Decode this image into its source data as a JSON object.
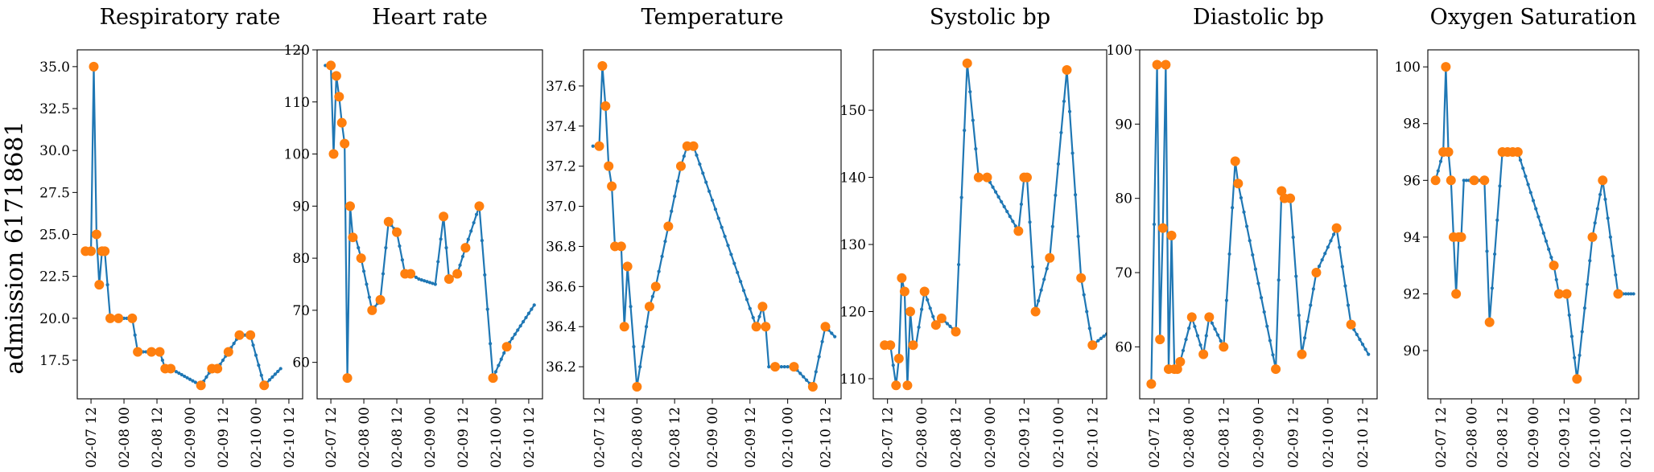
{
  "figure": {
    "ylabel": "admission 61718681"
  },
  "colors": {
    "line": "#1f77b4",
    "observed": "#ff7f0e",
    "axis": "#000000"
  },
  "chart_data": [
    {
      "type": "line",
      "title": "Respiratory rate",
      "xlabel": "",
      "ylabel": "",
      "xlim": [
        "2055-02-07 07:00",
        "2055-02-10 17:00"
      ],
      "ylim": [
        15.2,
        36.0
      ],
      "xticks": [
        "02-07 12",
        "02-08 00",
        "02-08 12",
        "02-09 00",
        "02-09 12",
        "02-10 00",
        "02-10 12"
      ],
      "yticks": [
        "17.5",
        "20.0",
        "22.5",
        "25.0",
        "27.5",
        "30.0",
        "32.5",
        "35.0"
      ],
      "series": [
        {
          "role": "interpolated",
          "x": [
            "2055-02-07 10:00",
            "2055-02-07 12:00",
            "2055-02-07 13:00",
            "2055-02-07 14:00",
            "2055-02-07 15:00",
            "2055-02-07 16:00",
            "2055-02-07 17:00",
            "2055-02-07 19:00",
            "2055-02-07 21:00",
            "2055-02-08 00:00",
            "2055-02-08 03:00",
            "2055-02-08 05:00",
            "2055-02-08 10:00",
            "2055-02-08 13:00",
            "2055-02-08 15:00",
            "2055-02-08 17:00",
            "2055-02-09 04:00",
            "2055-02-09 08:00",
            "2055-02-09 10:00",
            "2055-02-09 14:00",
            "2055-02-09 18:00",
            "2055-02-09 22:00",
            "2055-02-10 03:00",
            "2055-02-10 09:00"
          ],
          "y": [
            24,
            24,
            35,
            25,
            22,
            24,
            24,
            20,
            20,
            20,
            20,
            18,
            18,
            18,
            17,
            17,
            16,
            17,
            17,
            18,
            19,
            19,
            16,
            17
          ]
        },
        {
          "role": "observed",
          "x": [
            "2055-02-07 10:00",
            "2055-02-07 12:00",
            "2055-02-07 13:00",
            "2055-02-07 14:00",
            "2055-02-07 15:00",
            "2055-02-07 16:00",
            "2055-02-07 17:00",
            "2055-02-07 19:00",
            "2055-02-07 22:00",
            "2055-02-08 03:00",
            "2055-02-08 05:00",
            "2055-02-08 10:00",
            "2055-02-08 13:00",
            "2055-02-08 15:00",
            "2055-02-08 17:00",
            "2055-02-09 04:00",
            "2055-02-09 08:00",
            "2055-02-09 10:00",
            "2055-02-09 14:00",
            "2055-02-09 18:00",
            "2055-02-09 22:00",
            "2055-02-10 03:00"
          ],
          "y": [
            24,
            24,
            35,
            25,
            22,
            24,
            24,
            20,
            20,
            20,
            18,
            18,
            18,
            17,
            17,
            16,
            17,
            17,
            18,
            19,
            19,
            16
          ]
        }
      ]
    },
    {
      "type": "line",
      "title": "Heart rate",
      "xlabel": "",
      "ylabel": "",
      "xlim": [
        "2055-02-07 07:00",
        "2055-02-10 17:00"
      ],
      "ylim": [
        53,
        120
      ],
      "xticks": [
        "02-07 12",
        "02-08 00",
        "02-08 12",
        "02-09 00",
        "02-09 12",
        "02-10 00",
        "02-10 12"
      ],
      "yticks": [
        "60",
        "70",
        "80",
        "90",
        "100",
        "110",
        "120"
      ],
      "series": [
        {
          "role": "interpolated",
          "x": [
            "2055-02-07 10:00",
            "2055-02-07 12:00",
            "2055-02-07 13:00",
            "2055-02-07 14:00",
            "2055-02-07 15:00",
            "2055-02-07 16:00",
            "2055-02-07 17:00",
            "2055-02-07 18:00",
            "2055-02-07 19:00",
            "2055-02-07 20:00",
            "2055-02-07 21:00",
            "2055-02-07 23:00",
            "2055-02-08 03:00",
            "2055-02-08 06:00",
            "2055-02-08 09:00",
            "2055-02-08 12:00",
            "2055-02-08 15:00",
            "2055-02-08 16:00",
            "2055-02-08 17:00",
            "2055-02-08 20:00",
            "2055-02-09 02:00",
            "2055-02-09 05:00",
            "2055-02-09 07:00",
            "2055-02-09 10:00",
            "2055-02-09 13:00",
            "2055-02-09 18:00",
            "2055-02-09 23:00",
            "2055-02-10 04:00",
            "2055-02-10 14:00"
          ],
          "y": [
            117,
            117,
            100,
            115,
            111,
            106,
            102,
            57,
            90,
            84,
            84,
            80,
            70,
            72,
            87,
            85,
            77,
            77,
            77,
            76,
            75,
            88,
            76,
            77,
            82,
            90,
            57,
            63,
            71
          ]
        },
        {
          "role": "observed",
          "x": [
            "2055-02-07 12:00",
            "2055-02-07 13:00",
            "2055-02-07 14:00",
            "2055-02-07 15:00",
            "2055-02-07 16:00",
            "2055-02-07 17:00",
            "2055-02-07 18:00",
            "2055-02-07 19:00",
            "2055-02-07 20:00",
            "2055-02-07 23:00",
            "2055-02-08 03:00",
            "2055-02-08 06:00",
            "2055-02-08 09:00",
            "2055-02-08 12:00",
            "2055-02-08 15:00",
            "2055-02-08 17:00",
            "2055-02-09 05:00",
            "2055-02-09 07:00",
            "2055-02-09 10:00",
            "2055-02-09 13:00",
            "2055-02-09 18:00",
            "2055-02-09 23:00",
            "2055-02-10 04:00"
          ],
          "y": [
            117,
            100,
            115,
            111,
            106,
            102,
            57,
            90,
            84,
            80,
            70,
            72,
            87,
            85,
            77,
            77,
            88,
            76,
            77,
            82,
            90,
            57,
            63
          ]
        }
      ]
    },
    {
      "type": "line",
      "title": "Temperature",
      "xlabel": "",
      "ylabel": "",
      "xlim": [
        "2055-02-07 07:00",
        "2055-02-10 17:00"
      ],
      "ylim": [
        36.04,
        37.78
      ],
      "xticks": [
        "02-07 12",
        "02-08 00",
        "02-08 12",
        "02-09 00",
        "02-09 12",
        "02-10 00",
        "02-10 12"
      ],
      "yticks": [
        "36.2",
        "36.4",
        "36.6",
        "36.8",
        "37.0",
        "37.2",
        "37.4",
        "37.6"
      ],
      "series": [
        {
          "role": "interpolated",
          "x": [
            "2055-02-07 10:00",
            "2055-02-07 12:00",
            "2055-02-07 13:00",
            "2055-02-07 14:00",
            "2055-02-07 15:00",
            "2055-02-07 16:00",
            "2055-02-07 17:00",
            "2055-02-07 19:00",
            "2055-02-07 20:00",
            "2055-02-07 21:00",
            "2055-02-08 00:00",
            "2055-02-08 04:00",
            "2055-02-08 06:00",
            "2055-02-08 10:00",
            "2055-02-08 14:00",
            "2055-02-08 16:00",
            "2055-02-08 18:00",
            "2055-02-09 14:00",
            "2055-02-09 16:00",
            "2055-02-09 17:00",
            "2055-02-09 18:00",
            "2055-02-09 20:00",
            "2055-02-10 02:00",
            "2055-02-10 08:00",
            "2055-02-10 12:00",
            "2055-02-10 15:00"
          ],
          "y": [
            37.3,
            37.3,
            37.7,
            37.5,
            37.2,
            37.1,
            36.8,
            36.8,
            36.4,
            36.7,
            36.1,
            36.5,
            36.6,
            36.9,
            37.2,
            37.3,
            37.3,
            36.4,
            36.5,
            36.4,
            36.2,
            36.2,
            36.2,
            36.1,
            36.4,
            36.35
          ]
        },
        {
          "role": "observed",
          "x": [
            "2055-02-07 12:00",
            "2055-02-07 13:00",
            "2055-02-07 14:00",
            "2055-02-07 15:00",
            "2055-02-07 16:00",
            "2055-02-07 17:00",
            "2055-02-07 19:00",
            "2055-02-07 20:00",
            "2055-02-07 21:00",
            "2055-02-08 00:00",
            "2055-02-08 04:00",
            "2055-02-08 06:00",
            "2055-02-08 10:00",
            "2055-02-08 14:00",
            "2055-02-08 16:00",
            "2055-02-08 18:00",
            "2055-02-09 14:00",
            "2055-02-09 16:00",
            "2055-02-09 17:00",
            "2055-02-09 20:00",
            "2055-02-10 02:00",
            "2055-02-10 08:00",
            "2055-02-10 12:00"
          ],
          "y": [
            37.3,
            37.7,
            37.5,
            37.2,
            37.1,
            36.8,
            36.8,
            36.4,
            36.7,
            36.1,
            36.5,
            36.6,
            36.9,
            37.2,
            37.3,
            37.3,
            36.4,
            36.5,
            36.4,
            36.2,
            36.2,
            36.1,
            36.4
          ]
        }
      ]
    },
    {
      "type": "line",
      "title": "Systolic bp",
      "xlabel": "",
      "ylabel": "",
      "xlim": [
        "2055-02-07 07:00",
        "2055-02-10 17:00"
      ],
      "ylim": [
        107,
        159
      ],
      "xticks": [
        "02-07 12",
        "02-08 00",
        "02-08 12",
        "02-09 00",
        "02-09 12",
        "02-10 00",
        "02-10 12"
      ],
      "yticks": [
        "110",
        "120",
        "130",
        "140",
        "150"
      ],
      "series": [
        {
          "role": "interpolated",
          "x": [
            "2055-02-07 11:00",
            "2055-02-07 13:00",
            "2055-02-07 15:00",
            "2055-02-07 16:00",
            "2055-02-07 17:00",
            "2055-02-07 18:00",
            "2055-02-07 19:00",
            "2055-02-07 20:00",
            "2055-02-07 21:00",
            "2055-02-07 22:00",
            "2055-02-08 01:00",
            "2055-02-08 05:00",
            "2055-02-08 07:00",
            "2055-02-08 12:00",
            "2055-02-08 16:00",
            "2055-02-08 20:00",
            "2055-02-08 23:00",
            "2055-02-09 10:00",
            "2055-02-09 12:00",
            "2055-02-09 13:00",
            "2055-02-09 16:00",
            "2055-02-09 21:00",
            "2055-02-10 03:00",
            "2055-02-10 08:00",
            "2055-02-10 12:00",
            "2055-02-10 18:00"
          ],
          "y": [
            115,
            115,
            109,
            113,
            125,
            123,
            109,
            120,
            115,
            115,
            123,
            118,
            119,
            117,
            157,
            140,
            140,
            132,
            140,
            140,
            120,
            128,
            156,
            125,
            115,
            117
          ]
        },
        {
          "role": "observed",
          "x": [
            "2055-02-07 11:00",
            "2055-02-07 13:00",
            "2055-02-07 15:00",
            "2055-02-07 16:00",
            "2055-02-07 17:00",
            "2055-02-07 18:00",
            "2055-02-07 19:00",
            "2055-02-07 20:00",
            "2055-02-07 21:00",
            "2055-02-08 01:00",
            "2055-02-08 05:00",
            "2055-02-08 07:00",
            "2055-02-08 12:00",
            "2055-02-08 16:00",
            "2055-02-08 20:00",
            "2055-02-08 23:00",
            "2055-02-09 10:00",
            "2055-02-09 12:00",
            "2055-02-09 13:00",
            "2055-02-09 16:00",
            "2055-02-09 21:00",
            "2055-02-10 03:00",
            "2055-02-10 08:00",
            "2055-02-10 12:00"
          ],
          "y": [
            115,
            115,
            109,
            113,
            125,
            123,
            109,
            120,
            115,
            123,
            118,
            119,
            117,
            157,
            140,
            140,
            132,
            140,
            140,
            120,
            128,
            156,
            125,
            115
          ]
        }
      ]
    },
    {
      "type": "line",
      "title": "Diastolic bp",
      "xlabel": "",
      "ylabel": "",
      "xlim": [
        "2055-02-07 07:00",
        "2055-02-10 17:00"
      ],
      "ylim": [
        53,
        100
      ],
      "xticks": [
        "02-07 12",
        "02-08 00",
        "02-08 12",
        "02-09 00",
        "02-09 12",
        "02-10 00",
        "02-10 12"
      ],
      "yticks": [
        "60",
        "70",
        "80",
        "90",
        "100"
      ],
      "series": [
        {
          "role": "interpolated",
          "x": [
            "2055-02-07 11:00",
            "2055-02-07 13:00",
            "2055-02-07 14:00",
            "2055-02-07 15:00",
            "2055-02-07 16:00",
            "2055-02-07 17:00",
            "2055-02-07 18:00",
            "2055-02-07 19:00",
            "2055-02-07 20:00",
            "2055-02-07 21:00",
            "2055-02-08 01:00",
            "2055-02-08 05:00",
            "2055-02-08 07:00",
            "2055-02-08 12:00",
            "2055-02-08 16:00",
            "2055-02-08 17:00",
            "2055-02-09 06:00",
            "2055-02-09 08:00",
            "2055-02-09 09:00",
            "2055-02-09 11:00",
            "2055-02-09 15:00",
            "2055-02-09 20:00",
            "2055-02-10 03:00",
            "2055-02-10 08:00",
            "2055-02-10 14:00"
          ],
          "y": [
            55,
            98,
            61,
            76,
            98,
            57,
            75,
            57,
            57,
            58,
            64,
            59,
            64,
            60,
            85,
            82,
            57,
            81,
            80,
            80,
            59,
            70,
            76,
            63,
            59
          ]
        },
        {
          "role": "observed",
          "x": [
            "2055-02-07 11:00",
            "2055-02-07 13:00",
            "2055-02-07 14:00",
            "2055-02-07 15:00",
            "2055-02-07 16:00",
            "2055-02-07 17:00",
            "2055-02-07 18:00",
            "2055-02-07 19:00",
            "2055-02-07 20:00",
            "2055-02-07 21:00",
            "2055-02-08 01:00",
            "2055-02-08 05:00",
            "2055-02-08 07:00",
            "2055-02-08 12:00",
            "2055-02-08 16:00",
            "2055-02-08 17:00",
            "2055-02-09 06:00",
            "2055-02-09 08:00",
            "2055-02-09 09:00",
            "2055-02-09 11:00",
            "2055-02-09 15:00",
            "2055-02-09 20:00",
            "2055-02-10 03:00",
            "2055-02-10 08:00"
          ],
          "y": [
            55,
            98,
            61,
            76,
            98,
            57,
            75,
            57,
            57,
            58,
            64,
            59,
            64,
            60,
            85,
            82,
            57,
            81,
            80,
            80,
            59,
            70,
            76,
            63
          ]
        }
      ]
    },
    {
      "type": "line",
      "title": "Oxygen Saturation",
      "xlabel": "",
      "ylabel": "",
      "xlim": [
        "2055-02-07 07:00",
        "2055-02-10 17:00"
      ],
      "ylim": [
        88.3,
        100.6
      ],
      "xticks": [
        "02-07 12",
        "02-08 00",
        "02-08 12",
        "02-09 00",
        "02-09 12",
        "02-10 00",
        "02-10 12"
      ],
      "yticks": [
        "90",
        "92",
        "94",
        "96",
        "98",
        "100"
      ],
      "series": [
        {
          "role": "interpolated",
          "x": [
            "2055-02-07 10:00",
            "2055-02-07 13:00",
            "2055-02-07 14:00",
            "2055-02-07 15:00",
            "2055-02-07 16:00",
            "2055-02-07 17:00",
            "2055-02-07 18:00",
            "2055-02-07 19:00",
            "2055-02-07 20:00",
            "2055-02-07 21:00",
            "2055-02-08 01:00",
            "2055-02-08 05:00",
            "2055-02-08 07:00",
            "2055-02-08 12:00",
            "2055-02-08 14:00",
            "2055-02-08 16:00",
            "2055-02-08 18:00",
            "2055-02-09 08:00",
            "2055-02-09 10:00",
            "2055-02-09 13:00",
            "2055-02-09 17:00",
            "2055-02-09 23:00",
            "2055-02-10 03:00",
            "2055-02-10 09:00",
            "2055-02-10 15:00"
          ],
          "y": [
            96,
            97,
            100,
            97,
            96,
            94,
            92,
            94,
            94,
            96,
            96,
            96,
            91,
            97,
            97,
            97,
            97,
            93,
            92,
            92,
            89,
            94,
            96,
            92,
            92
          ]
        },
        {
          "role": "observed",
          "x": [
            "2055-02-07 10:00",
            "2055-02-07 13:00",
            "2055-02-07 14:00",
            "2055-02-07 15:00",
            "2055-02-07 16:00",
            "2055-02-07 17:00",
            "2055-02-07 18:00",
            "2055-02-07 19:00",
            "2055-02-07 20:00",
            "2055-02-08 01:00",
            "2055-02-08 05:00",
            "2055-02-08 07:00",
            "2055-02-08 12:00",
            "2055-02-08 14:00",
            "2055-02-08 16:00",
            "2055-02-08 18:00",
            "2055-02-09 08:00",
            "2055-02-09 10:00",
            "2055-02-09 13:00",
            "2055-02-09 17:00",
            "2055-02-09 23:00",
            "2055-02-10 03:00",
            "2055-02-10 09:00"
          ],
          "y": [
            96,
            97,
            100,
            97,
            96,
            94,
            92,
            94,
            94,
            96,
            96,
            91,
            97,
            97,
            97,
            97,
            93,
            92,
            92,
            89,
            94,
            96,
            92
          ]
        }
      ]
    }
  ]
}
